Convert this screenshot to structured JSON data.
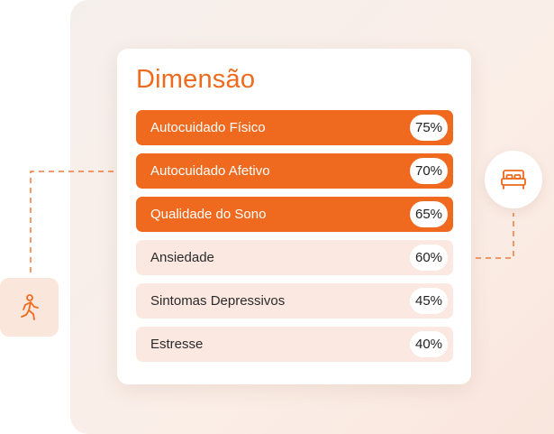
{
  "card": {
    "title": "Dimensão",
    "rows": [
      {
        "label": "Autocuidado Físico",
        "value": "75%",
        "highlighted": true
      },
      {
        "label": "Autocuidado Afetivo",
        "value": "70%",
        "highlighted": true
      },
      {
        "label": "Qualidade do Sono",
        "value": "65%",
        "highlighted": true
      },
      {
        "label": "Ansiedade",
        "value": "60%",
        "highlighted": false
      },
      {
        "label": "Sintomas Depressivos",
        "value": "45%",
        "highlighted": false
      },
      {
        "label": "Estresse",
        "value": "40%",
        "highlighted": false
      }
    ]
  },
  "icons": {
    "left": "person-walking-icon",
    "right": "bed-icon"
  },
  "colors": {
    "accent": "#ef6a1f",
    "row_light": "#fbe8e1",
    "panel_background": "#f7ece6"
  }
}
